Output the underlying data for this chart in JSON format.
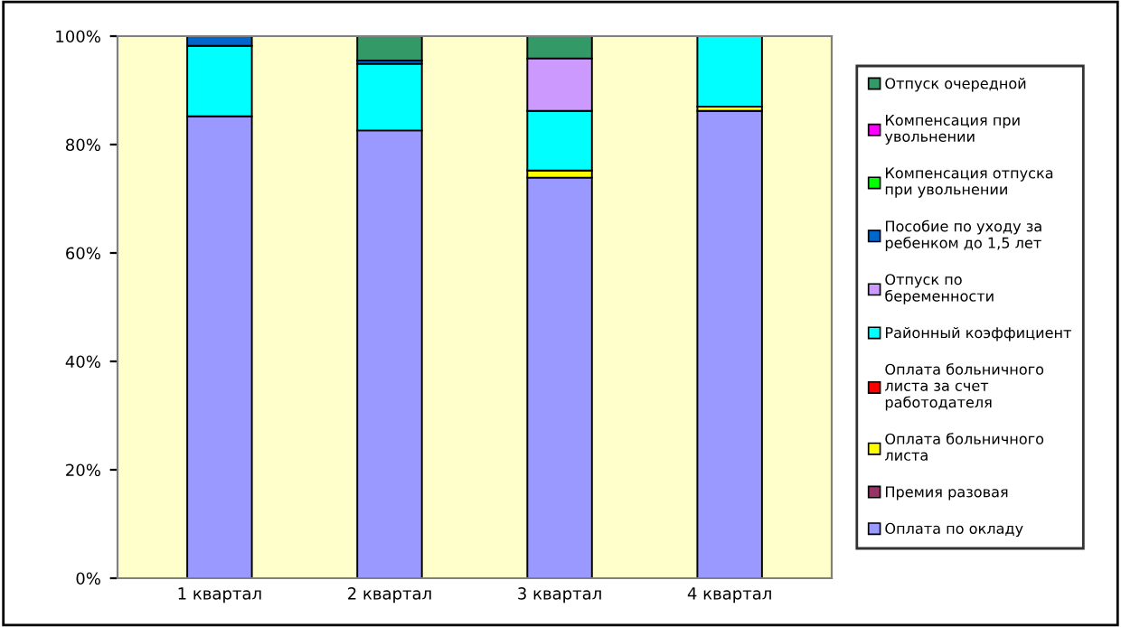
{
  "chart_data": {
    "type": "bar",
    "stacked": true,
    "categories": [
      "1 квартал",
      "2 квартал",
      "3 квартал",
      "4 квартал"
    ],
    "series": [
      {
        "name": "Оплата по окладу",
        "color": "#9999ff",
        "values": [
          85.2,
          82.6,
          73.9,
          86.2
        ]
      },
      {
        "name": "Премия разовая",
        "color": "#993366",
        "values": [
          0,
          0,
          0,
          0
        ]
      },
      {
        "name": "Оплата больничного листа",
        "color": "#ffff00",
        "values": [
          0,
          0,
          1.3,
          0.8
        ]
      },
      {
        "name": "Оплата больничного листа за счет работодателя",
        "color": "#ff0000",
        "values": [
          0,
          0,
          0,
          0
        ]
      },
      {
        "name": "Районный коэффициент",
        "color": "#00ffff",
        "values": [
          13.0,
          12.3,
          11.0,
          13.0
        ]
      },
      {
        "name": "Отпуск по беременности",
        "color": "#cc99ff",
        "values": [
          0,
          0,
          9.7,
          0
        ]
      },
      {
        "name": "Пособие по уходу за ребенком до 1,5 лет",
        "color": "#0066cc",
        "values": [
          1.8,
          0.6,
          0,
          0
        ]
      },
      {
        "name": "Компенсация отпуска при увольнении",
        "color": "#00ff00",
        "values": [
          0,
          0,
          0,
          0
        ]
      },
      {
        "name": "Компенсация при увольнении",
        "color": "#ff00ff",
        "values": [
          0,
          0,
          0,
          0
        ]
      },
      {
        "name": "Отпуск очередной",
        "color": "#339966",
        "values": [
          0,
          4.6,
          4.1,
          0
        ]
      }
    ],
    "ylim": [
      0,
      100
    ],
    "yticks": [
      {
        "value": 0,
        "label": "0%"
      },
      {
        "value": 20,
        "label": "20%"
      },
      {
        "value": 40,
        "label": "40%"
      },
      {
        "value": 60,
        "label": "60%"
      },
      {
        "value": 80,
        "label": "80%"
      },
      {
        "value": 100,
        "label": "100%"
      }
    ],
    "grid": false,
    "legend": "right"
  }
}
